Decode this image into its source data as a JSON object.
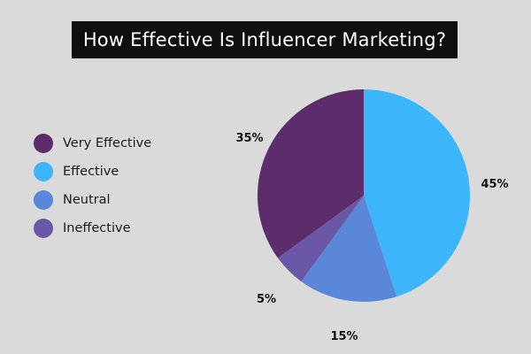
{
  "chart_data": {
    "type": "pie",
    "title": "How Effective Is Influencer Marketing?",
    "categories": [
      "Very Effective",
      "Effective",
      "Neutral",
      "Ineffective"
    ],
    "values": [
      35,
      45,
      15,
      5
    ],
    "value_labels": [
      "35%",
      "45%",
      "15%",
      "5%"
    ],
    "colors": [
      "#5d2d6b",
      "#3db5fb",
      "#5a87d8",
      "#6a57a5"
    ],
    "start": "top, clockwise beginning with Effective",
    "legend_position": "left"
  }
}
